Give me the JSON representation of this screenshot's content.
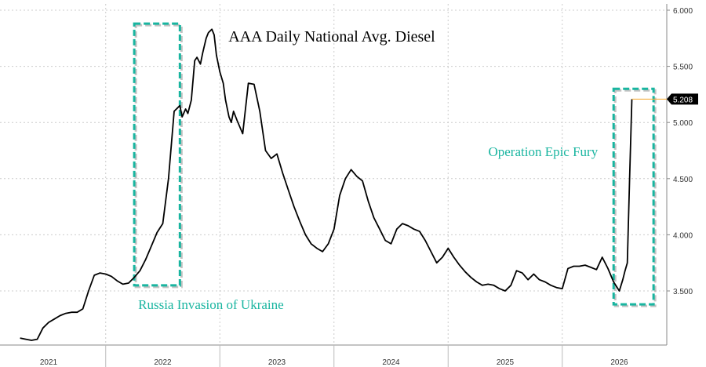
{
  "chart_data": {
    "type": "line",
    "title": "AAA Daily National Avg. Diesel",
    "xlabel": "",
    "ylabel": "",
    "ylim": [
      3.1,
      6.0
    ],
    "y_ticks": [
      "6.000",
      "5.500",
      "5.000",
      "4.500",
      "4.000",
      "3.500"
    ],
    "x_ticks": [
      "2021",
      "2022",
      "2023",
      "2024",
      "2025",
      "2026"
    ],
    "grid": true,
    "last_value_label": "5.208",
    "annotations": [
      {
        "text": "Russia Invasion of Ukraine",
        "x_range": [
          2021.75,
          2022.15
        ],
        "y_range": [
          3.55,
          5.88
        ]
      },
      {
        "text": "Operation Epic Fury",
        "x_range": [
          2025.95,
          2026.3
        ],
        "y_range": [
          3.38,
          5.3
        ]
      }
    ],
    "colors": {
      "line": "#000000",
      "box": "#19b5a0",
      "box_shadow": "#999999",
      "grid": "#cccccc",
      "last_value_line": "#f5b041",
      "badge": "#000000"
    },
    "series": [
      {
        "x": [
          2020.75,
          2020.8,
          2020.85,
          2020.9,
          2020.95,
          2021.0,
          2021.05,
          2021.1,
          2021.15,
          2021.2,
          2021.25,
          2021.3,
          2021.35,
          2021.4,
          2021.45,
          2021.5,
          2021.55,
          2021.6,
          2021.65,
          2021.7,
          2021.75,
          2021.8,
          2021.85,
          2021.9,
          2021.95,
          2022.0,
          2022.05,
          2022.1,
          2022.15,
          2022.17,
          2022.2,
          2022.22,
          2022.25,
          2022.28,
          2022.3,
          2022.33,
          2022.35,
          2022.38,
          2022.4,
          2022.43,
          2022.45,
          2022.47,
          2022.5,
          2022.53,
          2022.55,
          2022.58,
          2022.6,
          2022.62,
          2022.65,
          2022.7,
          2022.75,
          2022.8,
          2022.85,
          2022.9,
          2022.95,
          2023.0,
          2023.05,
          2023.1,
          2023.15,
          2023.2,
          2023.25,
          2023.3,
          2023.35,
          2023.4,
          2023.45,
          2023.5,
          2023.55,
          2023.6,
          2023.65,
          2023.7,
          2023.75,
          2023.8,
          2023.85,
          2023.9,
          2023.95,
          2024.0,
          2024.05,
          2024.1,
          2024.15,
          2024.2,
          2024.25,
          2024.3,
          2024.35,
          2024.4,
          2024.45,
          2024.5,
          2024.55,
          2024.6,
          2024.65,
          2024.7,
          2024.75,
          2024.8,
          2024.85,
          2024.9,
          2024.95,
          2025.0,
          2025.05,
          2025.1,
          2025.15,
          2025.2,
          2025.25,
          2025.3,
          2025.35,
          2025.4,
          2025.45,
          2025.5,
          2025.55,
          2025.6,
          2025.65,
          2025.7,
          2025.75,
          2025.8,
          2025.85,
          2025.9,
          2025.95,
          2026.0,
          2026.03,
          2026.05,
          2026.07,
          2026.09,
          2026.11
        ],
        "values": [
          3.08,
          3.07,
          3.06,
          3.07,
          3.17,
          3.22,
          3.25,
          3.28,
          3.3,
          3.31,
          3.31,
          3.34,
          3.5,
          3.64,
          3.66,
          3.65,
          3.63,
          3.59,
          3.56,
          3.57,
          3.62,
          3.68,
          3.78,
          3.9,
          4.02,
          4.1,
          4.5,
          5.1,
          5.15,
          5.05,
          5.12,
          5.08,
          5.2,
          5.55,
          5.58,
          5.52,
          5.62,
          5.75,
          5.8,
          5.83,
          5.78,
          5.6,
          5.45,
          5.35,
          5.2,
          5.05,
          5.0,
          5.1,
          5.02,
          4.9,
          5.35,
          5.34,
          5.1,
          4.75,
          4.68,
          4.72,
          4.55,
          4.4,
          4.25,
          4.12,
          4.0,
          3.92,
          3.88,
          3.85,
          3.92,
          4.05,
          4.35,
          4.5,
          4.58,
          4.52,
          4.48,
          4.3,
          4.15,
          4.05,
          3.95,
          3.92,
          4.05,
          4.1,
          4.08,
          4.05,
          4.03,
          3.95,
          3.85,
          3.75,
          3.8,
          3.88,
          3.8,
          3.73,
          3.67,
          3.62,
          3.58,
          3.55,
          3.56,
          3.55,
          3.52,
          3.5,
          3.55,
          3.68,
          3.66,
          3.6,
          3.65,
          3.6,
          3.58,
          3.55,
          3.53,
          3.52,
          3.7,
          3.72,
          3.72,
          3.73,
          3.71,
          3.69,
          3.8,
          3.7,
          3.58,
          3.5,
          3.6,
          3.68,
          3.75,
          4.5,
          5.208
        ]
      }
    ]
  }
}
